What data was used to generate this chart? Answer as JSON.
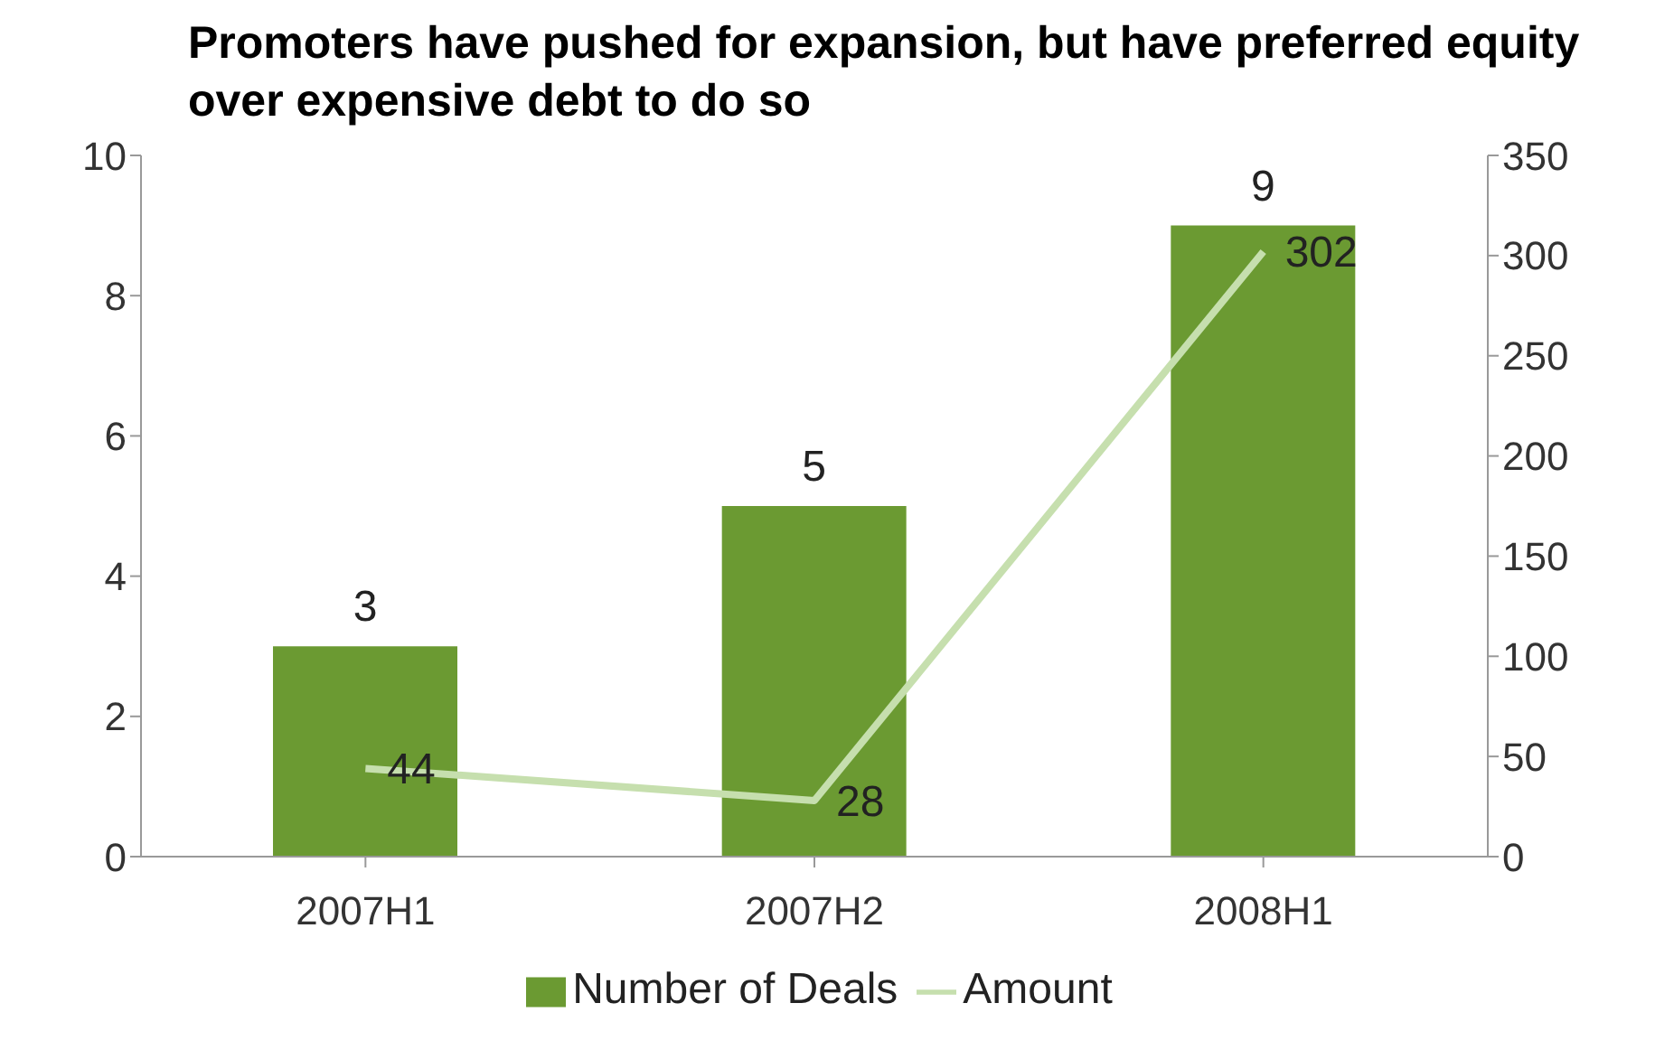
{
  "chart_data": {
    "type": "bar",
    "title": "Promoters have pushed for expansion, but have preferred equity over expensive debt to do so",
    "categories": [
      "2007H1",
      "2007H2",
      "2008H1"
    ],
    "series": [
      {
        "name": "Number of Deals",
        "color": "#6b9a32",
        "values": [
          3,
          5,
          9
        ]
      },
      {
        "name": "Amount",
        "type": "line",
        "axis": "y2",
        "color": "#c6dfae",
        "values": [
          44,
          28,
          302
        ]
      }
    ],
    "ylim": [
      0,
      10
    ],
    "yticks": [
      0,
      2,
      4,
      6,
      8,
      10
    ],
    "y2lim": [
      0,
      350
    ],
    "y2ticks": [
      0,
      50,
      100,
      150,
      200,
      250,
      300,
      350
    ],
    "data_labels": true,
    "legend": "bottom",
    "marker": "none"
  }
}
